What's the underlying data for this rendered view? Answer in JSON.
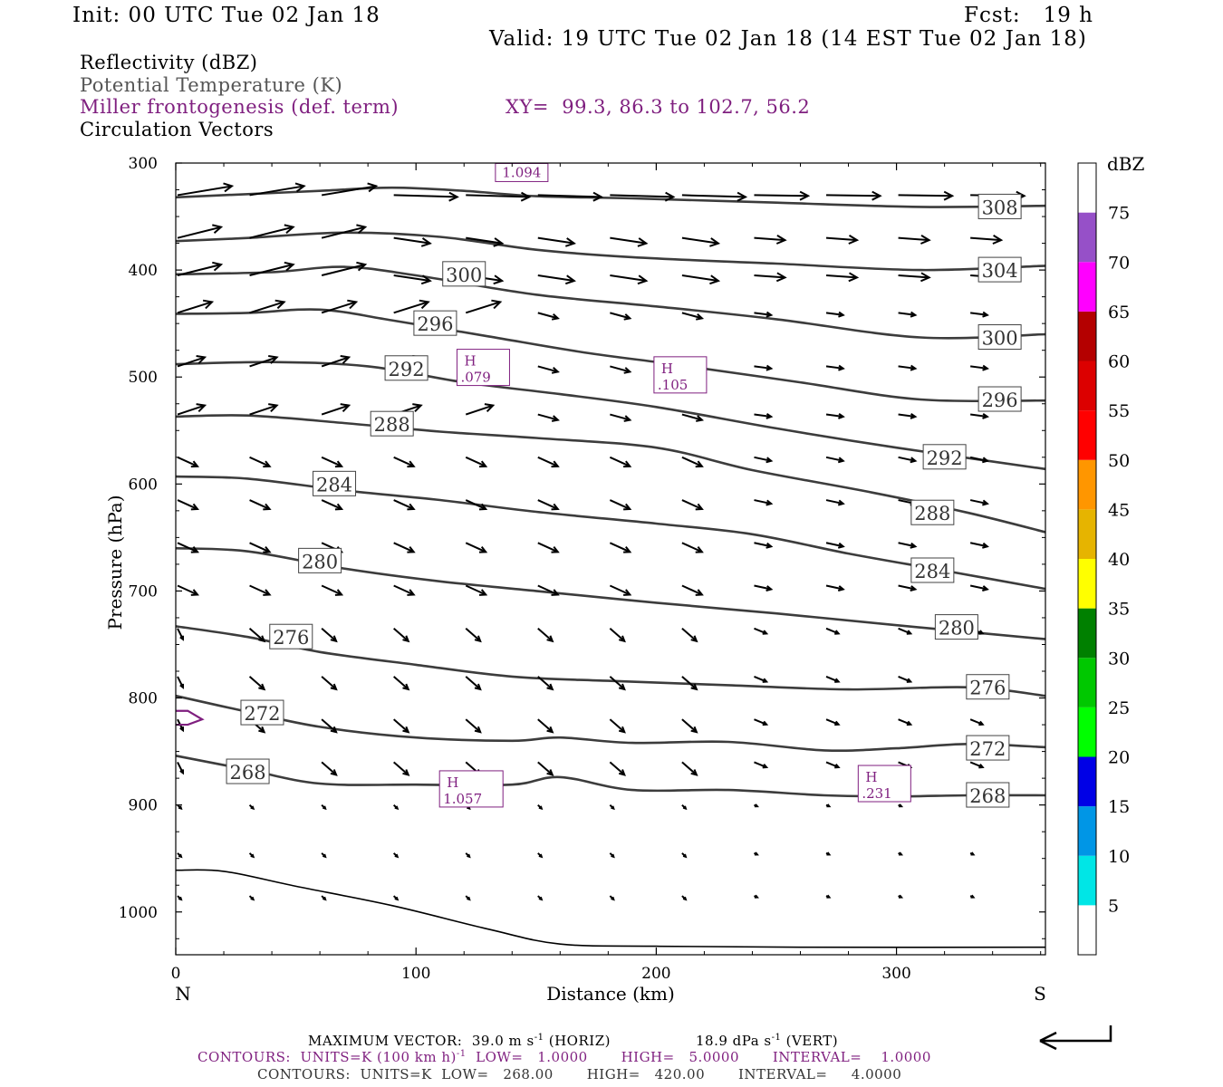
{
  "header": {
    "init": "Init: 00 UTC Tue 02 Jan 18",
    "fcst": "Fcst:   19 h",
    "valid": "Valid: 19 UTC Tue 02 Jan 18 (14 EST Tue 02 Jan 18)"
  },
  "legend": {
    "reflectivity": "Reflectivity (dBZ)",
    "theta": "Potential Temperature (K)",
    "frontogenesis": "Miller frontogenesis (def. term)",
    "xy": "XY=  99.3, 86.3 to 102.7, 56.2",
    "vectors": "Circulation Vectors"
  },
  "colors": {
    "theta_contour": "#3c3c3c",
    "frontogenesis": "#7f1f7f",
    "vectors": "#000000",
    "terrain": "#000000"
  },
  "chart_data": {
    "type": "contour",
    "x": {
      "label": "Distance (km)",
      "ticks": [
        0,
        100,
        200,
        300
      ],
      "lim": [
        0,
        362
      ],
      "left_end_label": "N",
      "right_end_label": "S"
    },
    "y": {
      "label": "Pressure (hPa)",
      "ticks": [
        300,
        400,
        500,
        600,
        700,
        800,
        900,
        1000
      ],
      "lim": [
        300,
        1040
      ],
      "inverted": true
    },
    "colorbar": {
      "title": "dBZ",
      "labels": [
        "5",
        "10",
        "15",
        "20",
        "25",
        "30",
        "35",
        "40",
        "45",
        "50",
        "55",
        "60",
        "65",
        "70",
        "75"
      ],
      "colors": [
        "#ffffff",
        "#00e6e6",
        "#0096e6",
        "#0000e6",
        "#00ff00",
        "#00c800",
        "#008000",
        "#ffff00",
        "#e6b400",
        "#ff9600",
        "#ff0000",
        "#dc0000",
        "#b40000",
        "#ff00ff",
        "#9650c8",
        "#ffffff"
      ]
    },
    "theta_contours": [
      {
        "value": 308,
        "points": [
          [
            0,
            332
          ],
          [
            30,
            329
          ],
          [
            60,
            326
          ],
          [
            90,
            323
          ],
          [
            120,
            326
          ],
          [
            150,
            331
          ],
          [
            190,
            333
          ],
          [
            250,
            337
          ],
          [
            310,
            341
          ],
          [
            362,
            340
          ]
        ],
        "label_at": [
          343,
          341
        ]
      },
      {
        "value": 304,
        "points": [
          [
            0,
            373
          ],
          [
            30,
            370
          ],
          [
            70,
            365
          ],
          [
            110,
            369
          ],
          [
            150,
            381
          ],
          [
            190,
            388
          ],
          [
            250,
            394
          ],
          [
            310,
            400
          ],
          [
            362,
            396
          ]
        ],
        "label_at": [
          343,
          400
        ]
      },
      {
        "value": 300,
        "points": [
          [
            0,
            404
          ],
          [
            40,
            402
          ],
          [
            70,
            397
          ],
          [
            100,
            405
          ],
          [
            150,
            423
          ],
          [
            200,
            434
          ],
          [
            250,
            446
          ],
          [
            310,
            463
          ],
          [
            362,
            460
          ]
        ],
        "label_at": [
          343,
          463
        ]
      },
      {
        "value": 296,
        "points": [
          [
            0,
            441
          ],
          [
            30,
            440
          ],
          [
            60,
            437
          ],
          [
            90,
            447
          ],
          [
            130,
            462
          ],
          [
            170,
            477
          ],
          [
            210,
            489
          ],
          [
            260,
            505
          ],
          [
            310,
            521
          ],
          [
            362,
            522
          ]
        ],
        "label_at": [
          343,
          521
        ]
      },
      {
        "value": 292,
        "points": [
          [
            0,
            488
          ],
          [
            40,
            486
          ],
          [
            80,
            490
          ],
          [
            120,
            505
          ],
          [
            160,
            516
          ],
          [
            200,
            528
          ],
          [
            250,
            548
          ],
          [
            300,
            566
          ],
          [
            362,
            586
          ]
        ],
        "label_at": [
          320,
          575
        ]
      },
      {
        "value": 288,
        "points": [
          [
            0,
            537
          ],
          [
            30,
            536
          ],
          [
            70,
            543
          ],
          [
            110,
            551
          ],
          [
            150,
            557
          ],
          [
            200,
            566
          ],
          [
            240,
            587
          ],
          [
            290,
            608
          ],
          [
            330,
            627
          ],
          [
            362,
            645
          ]
        ],
        "label_at": [
          315,
          627
        ]
      },
      {
        "value": 284,
        "points": [
          [
            0,
            593
          ],
          [
            30,
            595
          ],
          [
            70,
            606
          ],
          [
            110,
            615
          ],
          [
            150,
            626
          ],
          [
            200,
            637
          ],
          [
            240,
            647
          ],
          [
            280,
            665
          ],
          [
            320,
            681
          ],
          [
            362,
            698
          ]
        ],
        "label_at": [
          315,
          681
        ]
      },
      {
        "value": 280,
        "points": [
          [
            0,
            660
          ],
          [
            30,
            663
          ],
          [
            70,
            679
          ],
          [
            110,
            691
          ],
          [
            150,
            700
          ],
          [
            200,
            711
          ],
          [
            250,
            721
          ],
          [
            300,
            732
          ],
          [
            362,
            745
          ]
        ],
        "label_at": [
          325,
          734
        ]
      },
      {
        "value": 276,
        "points": [
          [
            0,
            733
          ],
          [
            30,
            743
          ],
          [
            60,
            757
          ],
          [
            100,
            769
          ],
          [
            140,
            780
          ],
          [
            180,
            784
          ],
          [
            230,
            788
          ],
          [
            280,
            792
          ],
          [
            330,
            790
          ],
          [
            362,
            798
          ]
        ],
        "label_at": [
          338,
          790
        ]
      },
      {
        "value": 272,
        "points": [
          [
            0,
            798
          ],
          [
            30,
            813
          ],
          [
            60,
            827
          ],
          [
            100,
            837
          ],
          [
            140,
            840
          ],
          [
            160,
            837
          ],
          [
            190,
            842
          ],
          [
            230,
            841
          ],
          [
            270,
            849
          ],
          [
            300,
            847
          ],
          [
            330,
            843
          ],
          [
            362,
            846
          ]
        ],
        "label_at": [
          338,
          847
        ]
      },
      {
        "value": 268,
        "points": [
          [
            0,
            854
          ],
          [
            30,
            867
          ],
          [
            60,
            880
          ],
          [
            100,
            881
          ],
          [
            140,
            881
          ],
          [
            160,
            874
          ],
          [
            190,
            886
          ],
          [
            230,
            886
          ],
          [
            270,
            891
          ],
          [
            300,
            892
          ],
          [
            330,
            891
          ],
          [
            362,
            891
          ]
        ],
        "label_at": [
          338,
          891
        ]
      }
    ],
    "terrain": [
      [
        0,
        961
      ],
      [
        20,
        962
      ],
      [
        50,
        976
      ],
      [
        90,
        994
      ],
      [
        130,
        1016
      ],
      [
        160,
        1030
      ],
      [
        200,
        1032
      ],
      [
        260,
        1033
      ],
      [
        362,
        1033
      ]
    ],
    "high_centers": [
      {
        "label": "H",
        "value": ".079"
      },
      {
        "label": "H",
        "value": ".105"
      },
      {
        "label": "H",
        "value": "1.057"
      },
      {
        "label": "H",
        "value": ".231"
      }
    ],
    "maxima_text": [
      "1.094"
    ]
  },
  "footer": {
    "max_vector": "MAXIMUM VECTOR:  39.0 m s",
    "max_vector_exp": "-1",
    "max_vector_tail": " (HORIZ)",
    "vert": "18.9 dPa s",
    "vert_exp": "-1",
    "vert_tail": " (VERT)",
    "contours1": "CONTOURS:  UNITS=K (100 km h)",
    "contours1_exp": "-1",
    "contours1_tail": "  LOW=   1.0000       HIGH=   5.0000       INTERVAL=    1.0000",
    "contours2": "CONTOURS:  UNITS=K  LOW=   268.00       HIGH=   420.00       INTERVAL=     4.0000"
  }
}
